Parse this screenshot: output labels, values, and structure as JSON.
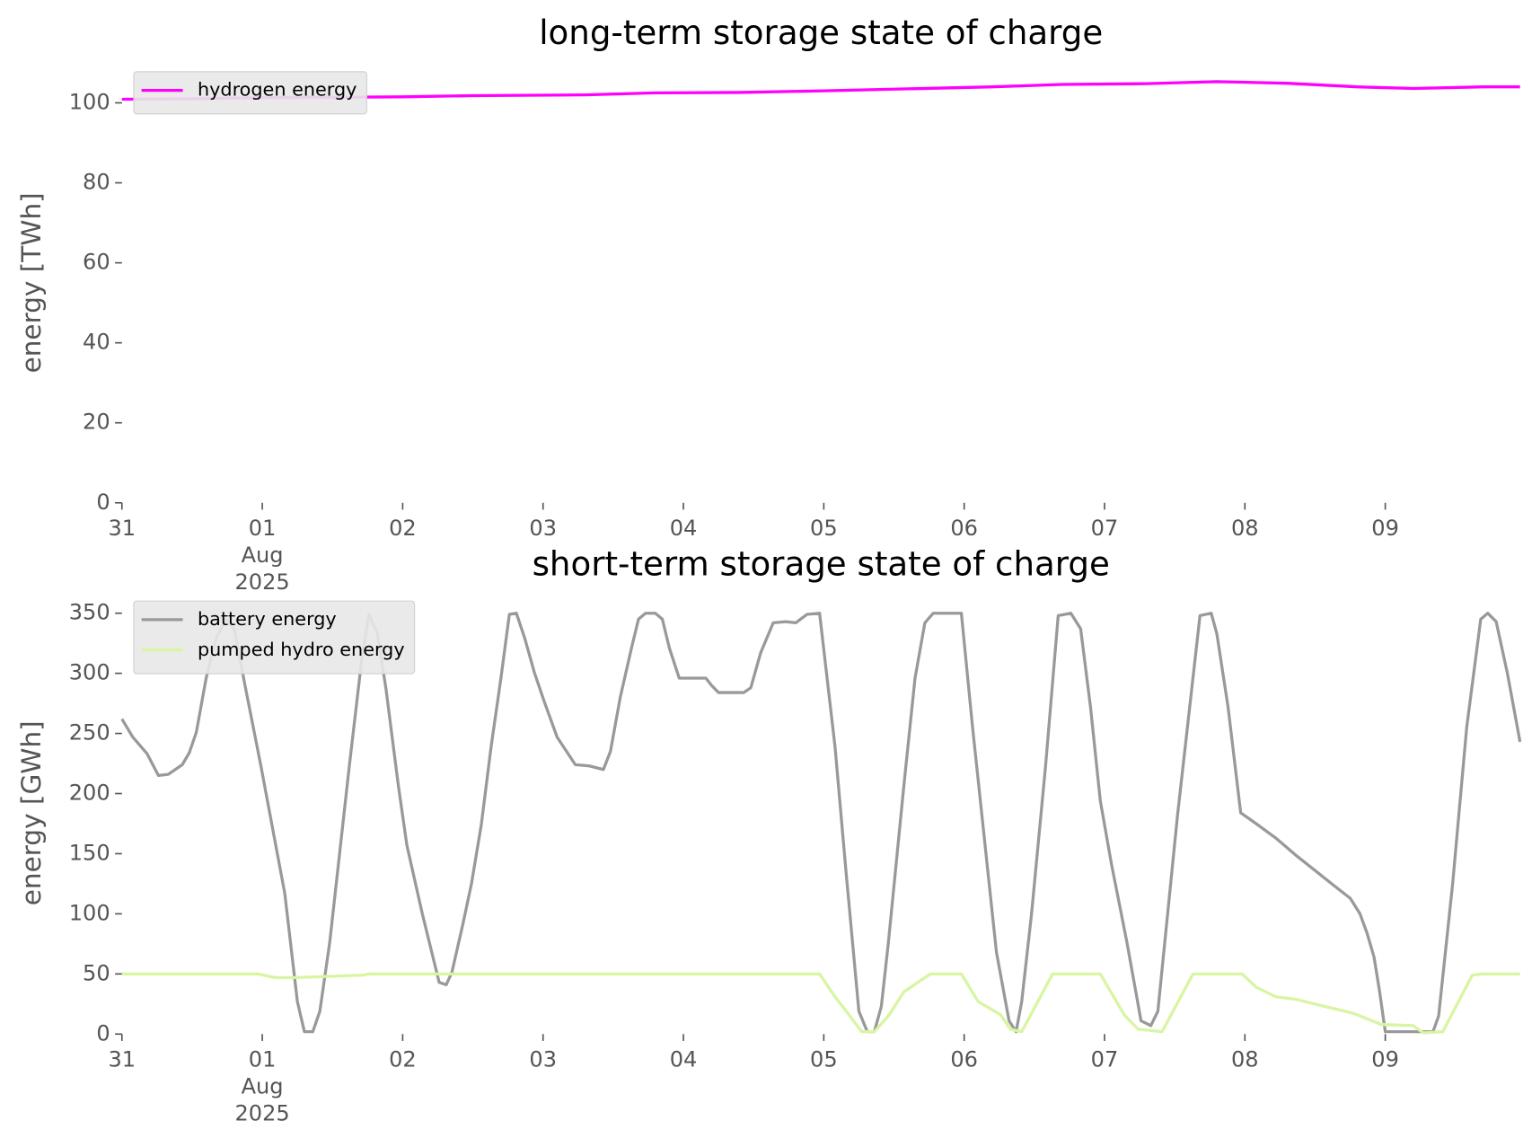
{
  "chart_data": [
    {
      "type": "line",
      "title": "long-term storage state of charge",
      "ylabel": "energy [TWh]",
      "xlim": [
        0,
        9.96
      ],
      "ylim": [
        0,
        110
      ],
      "yticks": [
        0,
        20,
        40,
        60,
        80,
        100
      ],
      "xticks": [
        {
          "value": 0,
          "label": "31"
        },
        {
          "value": 1,
          "label": "01\nAug\n2025"
        },
        {
          "value": 2,
          "label": "02"
        },
        {
          "value": 3,
          "label": "03"
        },
        {
          "value": 4,
          "label": "04"
        },
        {
          "value": 5,
          "label": "05"
        },
        {
          "value": 6,
          "label": "06"
        },
        {
          "value": 7,
          "label": "07"
        },
        {
          "value": 8,
          "label": "08"
        },
        {
          "value": 9,
          "label": "09"
        }
      ],
      "legend": "upper left",
      "grid": false,
      "series": [
        {
          "name": "hydrogen energy",
          "color": "#ff00ff",
          "x": [
            0,
            0.5,
            1,
            2,
            2.5,
            3.3,
            3.8,
            4.4,
            5,
            5.6,
            6.2,
            6.7,
            7.3,
            7.8,
            8.3,
            8.8,
            9.2,
            9.7,
            9.96
          ],
          "values": [
            100.9,
            101.0,
            101.3,
            101.5,
            101.8,
            102.0,
            102.5,
            102.6,
            103.0,
            103.5,
            104.0,
            104.6,
            104.8,
            105.3,
            104.9,
            104.0,
            103.6,
            104.0,
            104.0
          ]
        }
      ]
    },
    {
      "type": "line",
      "title": "short-term storage state of charge",
      "ylabel": "energy [GWh]",
      "xlim": [
        0,
        9.96
      ],
      "ylim": [
        0,
        367.5
      ],
      "yticks": [
        0,
        50,
        100,
        150,
        200,
        250,
        300,
        350
      ],
      "xticks": [
        {
          "value": 0,
          "label": "31"
        },
        {
          "value": 1,
          "label": "01\nAug\n2025"
        },
        {
          "value": 2,
          "label": "02"
        },
        {
          "value": 3,
          "label": "03"
        },
        {
          "value": 4,
          "label": "04"
        },
        {
          "value": 5,
          "label": "05"
        },
        {
          "value": 6,
          "label": "06"
        },
        {
          "value": 7,
          "label": "07"
        },
        {
          "value": 8,
          "label": "08"
        },
        {
          "value": 9,
          "label": "09"
        }
      ],
      "legend": "upper left",
      "grid": false,
      "series": [
        {
          "name": "battery energy",
          "color": "#999999",
          "x": [
            0,
            0.077,
            0.18,
            0.26,
            0.33,
            0.43,
            0.48,
            0.53,
            0.6,
            0.67,
            0.74,
            0.8,
            0.88,
            0.99,
            1.16,
            1.25,
            1.3,
            1.36,
            1.41,
            1.48,
            1.62,
            1.71,
            1.76,
            1.82,
            1.88,
            1.97,
            2.03,
            2.14,
            2.26,
            2.31,
            2.35,
            2.43,
            2.49,
            2.56,
            2.63,
            2.7,
            2.76,
            2.81,
            2.87,
            2.94,
            3.01,
            3.1,
            3.23,
            3.33,
            3.43,
            3.48,
            3.55,
            3.63,
            3.68,
            3.73,
            3.8,
            3.85,
            3.9,
            3.97,
            4.06,
            4.16,
            4.2,
            4.25,
            4.34,
            4.43,
            4.48,
            4.55,
            4.64,
            4.73,
            4.8,
            4.88,
            4.97,
            5.08,
            5.16,
            5.25,
            5.31,
            5.36,
            5.41,
            5.46,
            5.57,
            5.65,
            5.72,
            5.78,
            5.98,
            6.06,
            6.23,
            6.32,
            6.37,
            6.41,
            6.48,
            6.58,
            6.67,
            6.76,
            6.83,
            6.9,
            6.97,
            7.05,
            7.16,
            7.26,
            7.33,
            7.38,
            7.52,
            7.68,
            7.76,
            7.8,
            7.88,
            7.97,
            8.08,
            8.22,
            8.36,
            8.5,
            8.64,
            8.75,
            8.82,
            8.87,
            8.92,
            8.96,
            9.0,
            9.24,
            9.34,
            9.38,
            9.48,
            9.58,
            9.68,
            9.73,
            9.79,
            9.87,
            9.96
          ],
          "values": [
            262,
            247,
            233,
            215,
            216,
            224,
            234,
            251,
            296,
            329,
            345,
            337,
            288,
            223,
            117,
            27,
            2,
            2,
            19,
            76,
            223,
            313,
            349,
            333,
            288,
            206,
            157,
            100,
            43,
            41,
            51,
            92,
            125,
            174,
            239,
            296,
            349,
            350,
            329,
            300,
            276,
            247,
            224,
            223,
            220,
            235,
            280,
            321,
            345,
            350,
            350,
            345,
            321,
            296,
            296,
            296,
            290,
            284,
            284,
            284,
            288,
            317,
            342,
            343,
            342,
            349,
            350,
            239,
            133,
            19,
            2,
            2,
            23,
            76,
            206,
            296,
            342,
            350,
            350,
            255,
            68,
            11,
            2,
            27,
            100,
            223,
            348,
            350,
            337,
            272,
            194,
            141,
            76,
            11,
            7,
            19,
            182,
            348,
            350,
            333,
            272,
            184,
            175,
            163,
            149,
            136,
            123,
            113,
            100,
            84,
            64,
            35,
            2,
            2,
            2,
            15,
            125,
            255,
            345,
            350,
            343,
            300,
            243
          ]
        },
        {
          "name": "pumped hydro energy",
          "color": "#d8f5a2",
          "x": [
            0,
            0.97,
            1.09,
            1.23,
            1.72,
            1.76,
            4.97,
            5.08,
            5.18,
            5.27,
            5.36,
            5.46,
            5.57,
            5.67,
            5.76,
            5.98,
            6.1,
            6.26,
            6.33,
            6.41,
            6.63,
            6.97,
            7.14,
            7.24,
            7.41,
            7.63,
            7.98,
            8.08,
            8.22,
            8.36,
            8.57,
            8.78,
            8.97,
            9.2,
            9.27,
            9.41,
            9.62,
            9.69,
            9.96
          ],
          "values": [
            50,
            50,
            47,
            47,
            49,
            50,
            50,
            31,
            16,
            2,
            2,
            15,
            35,
            43,
            50,
            50,
            27,
            16,
            4,
            2,
            50,
            50,
            16,
            4,
            2,
            50,
            50,
            39,
            31,
            29,
            23,
            17,
            8,
            7,
            1,
            2,
            49,
            50,
            50
          ]
        }
      ]
    }
  ]
}
